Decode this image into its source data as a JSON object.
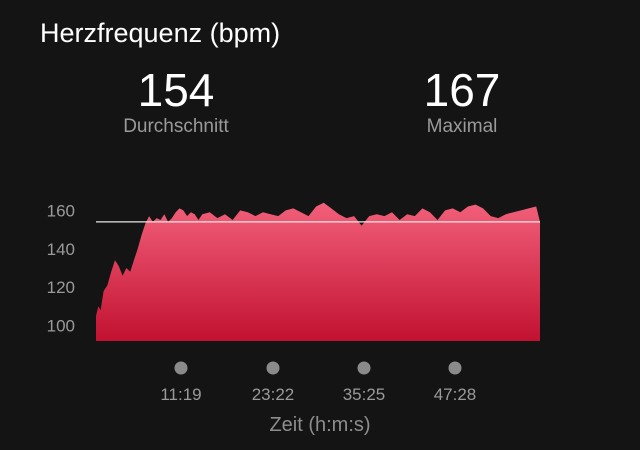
{
  "header": {
    "title": "Herzfrequenz (bpm)"
  },
  "stats": {
    "average": {
      "value": "154",
      "label": "Durchschnitt"
    },
    "maximum": {
      "value": "167",
      "label": "Maximal"
    }
  },
  "colors": {
    "background": "#141414",
    "fill_top": "#f2607a",
    "fill_bottom": "#c21131",
    "average_line": "#e8e8e8",
    "muted_text": "#9a9a9a",
    "marker": "#8a8a8a"
  },
  "chart_data": {
    "type": "area",
    "title": "Herzfrequenz (bpm)",
    "xlabel": "Zeit (h:m:s)",
    "ylabel": "",
    "x_ticks": [
      "11:19",
      "23:22",
      "35:25",
      "47:28"
    ],
    "y_ticks": [
      "160",
      "140",
      "120",
      "100"
    ],
    "ylim": [
      92,
      168
    ],
    "average_line": 154,
    "x": [
      0,
      0.3,
      0.6,
      1.0,
      1.5,
      2.0,
      2.5,
      3.0,
      3.5,
      4.0,
      4.5,
      5.0,
      5.5,
      6.0,
      6.5,
      7.0,
      7.5,
      8.0,
      8.5,
      9.0,
      9.5,
      10.0,
      10.5,
      11.0,
      11.5,
      12.0,
      12.5,
      13.0,
      13.5,
      14.0,
      15.0,
      16.0,
      17.0,
      18.0,
      19.0,
      20.0,
      21.0,
      22.0,
      23.0,
      24.0,
      25.0,
      26.0,
      27.0,
      28.0,
      29.0,
      30.0,
      31.0,
      32.0,
      33.0,
      34.0,
      35.0,
      36.0,
      37.0,
      38.0,
      39.0,
      40.0,
      41.0,
      42.0,
      43.0,
      44.0,
      45.0,
      46.0,
      47.0,
      48.0,
      49.0,
      50.0,
      51.0,
      52.0,
      53.0,
      54.0,
      55.0,
      56.0,
      57.0,
      58.0,
      58.5
    ],
    "y": [
      105,
      110,
      108,
      118,
      121,
      128,
      134,
      131,
      126,
      130,
      128,
      134,
      140,
      147,
      153,
      157,
      154,
      156,
      155,
      158,
      154,
      156,
      159,
      161,
      160,
      157,
      159,
      158,
      155,
      158,
      159,
      156,
      158,
      155,
      160,
      159,
      157,
      159,
      158,
      157,
      160,
      161,
      159,
      157,
      162,
      164,
      161,
      158,
      156,
      157,
      152,
      157,
      158,
      157,
      159,
      155,
      158,
      157,
      161,
      159,
      155,
      160,
      161,
      159,
      162,
      163,
      161,
      157,
      156,
      158,
      159,
      160,
      161,
      162,
      154
    ]
  },
  "x_axis": {
    "title": "Zeit (h:m:s)"
  }
}
